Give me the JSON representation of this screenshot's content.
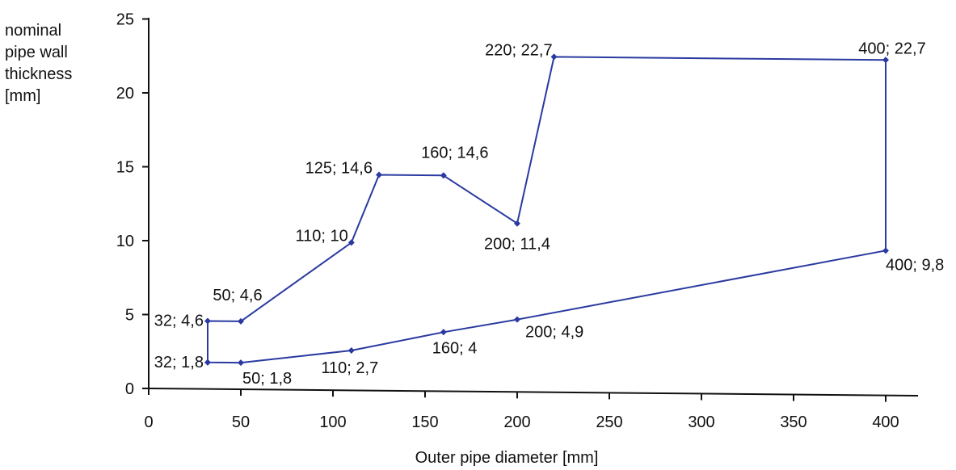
{
  "chart_data": {
    "type": "line",
    "xlabel": "Outer pipe diameter [mm]",
    "ylabel": [
      "nominal",
      "pipe wall",
      "thickness",
      "[mm]"
    ],
    "xlim": [
      0,
      420
    ],
    "ylim": [
      0,
      25
    ],
    "xticks": [
      "0",
      "50",
      "100",
      "150",
      "200",
      "250",
      "300",
      "350",
      "400"
    ],
    "yticks": [
      "0",
      "5",
      "10",
      "15",
      "20",
      "25"
    ],
    "grid": false,
    "legend": "none",
    "line_color": "#2a3aa0",
    "points": [
      {
        "x": 32,
        "y": 1.8,
        "label": "32; 1,8"
      },
      {
        "x": 32,
        "y": 4.6,
        "label": "32; 4,6"
      },
      {
        "x": 50,
        "y": 4.6,
        "label": "50; 4,6"
      },
      {
        "x": 110,
        "y": 10,
        "label": "110; 10"
      },
      {
        "x": 125,
        "y": 14.6,
        "label": "125; 14,6"
      },
      {
        "x": 160,
        "y": 14.6,
        "label": "160; 14,6"
      },
      {
        "x": 200,
        "y": 11.4,
        "label": "200; 11,4"
      },
      {
        "x": 220,
        "y": 22.7,
        "label": "220; 22,7"
      },
      {
        "x": 400,
        "y": 22.7,
        "label": "400; 22,7"
      },
      {
        "x": 400,
        "y": 9.8,
        "label": "400; 9,8"
      },
      {
        "x": 200,
        "y": 4.9,
        "label": "200; 4,9"
      },
      {
        "x": 160,
        "y": 4,
        "label": "160; 4"
      },
      {
        "x": 110,
        "y": 2.7,
        "label": "110; 2,7"
      },
      {
        "x": 50,
        "y": 1.8,
        "label": "50; 1,8"
      },
      {
        "x": 32,
        "y": 1.8,
        "label": ""
      }
    ]
  }
}
